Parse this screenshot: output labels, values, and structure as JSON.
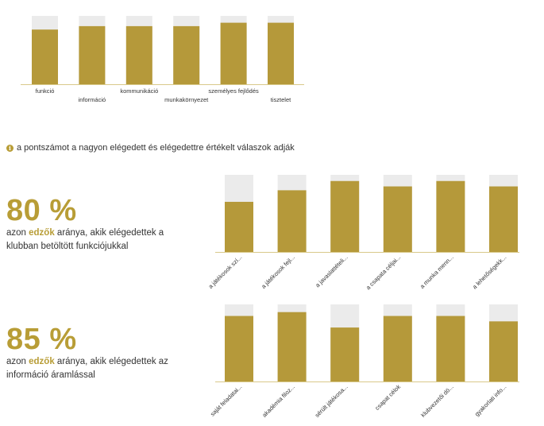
{
  "colors": {
    "bar": "#b5993a",
    "track": "#ebebeb",
    "accent": "#b89d36"
  },
  "note": {
    "icon": "info-icon",
    "text": "a pontszámot a nagyon elégedett és elégedettre értékelt válaszok adják"
  },
  "kpis": [
    {
      "value": "80 %",
      "pre": "azon ",
      "highlight": "edzők",
      "post": " aránya, akik elégedettek a klubban betöltött funkciójukkal"
    },
    {
      "value": "85 %",
      "pre": "azon ",
      "highlight": "edzők",
      "post": " aránya, akik elégedettek az információ áramlással"
    }
  ],
  "chart_data": [
    {
      "type": "bar",
      "categories": [
        "funkció",
        "információ",
        "kommunikáció",
        "munkakörnyezet",
        "személyes fejlődés",
        "tisztelet"
      ],
      "values": [
        80,
        85,
        85,
        85,
        90,
        90
      ],
      "ylim": [
        0,
        100
      ]
    },
    {
      "type": "bar",
      "categories": [
        "a játékosok szí...",
        "a játékosok fejl...",
        "a javaslattételi...",
        "a csapata céljai...",
        "a munka menn...",
        "a lehetőségekk..."
      ],
      "values": [
        65,
        80,
        92,
        85,
        92,
        85
      ],
      "ylim": [
        0,
        100
      ]
    },
    {
      "type": "bar",
      "categories": [
        "saját feladatai...",
        "akadémia filoz...",
        "sérült játékosa...",
        "csapat célok",
        "klubvezetői dö...",
        "gyakorlati info..."
      ],
      "values": [
        85,
        90,
        70,
        85,
        85,
        78
      ],
      "ylim": [
        0,
        100
      ]
    }
  ]
}
